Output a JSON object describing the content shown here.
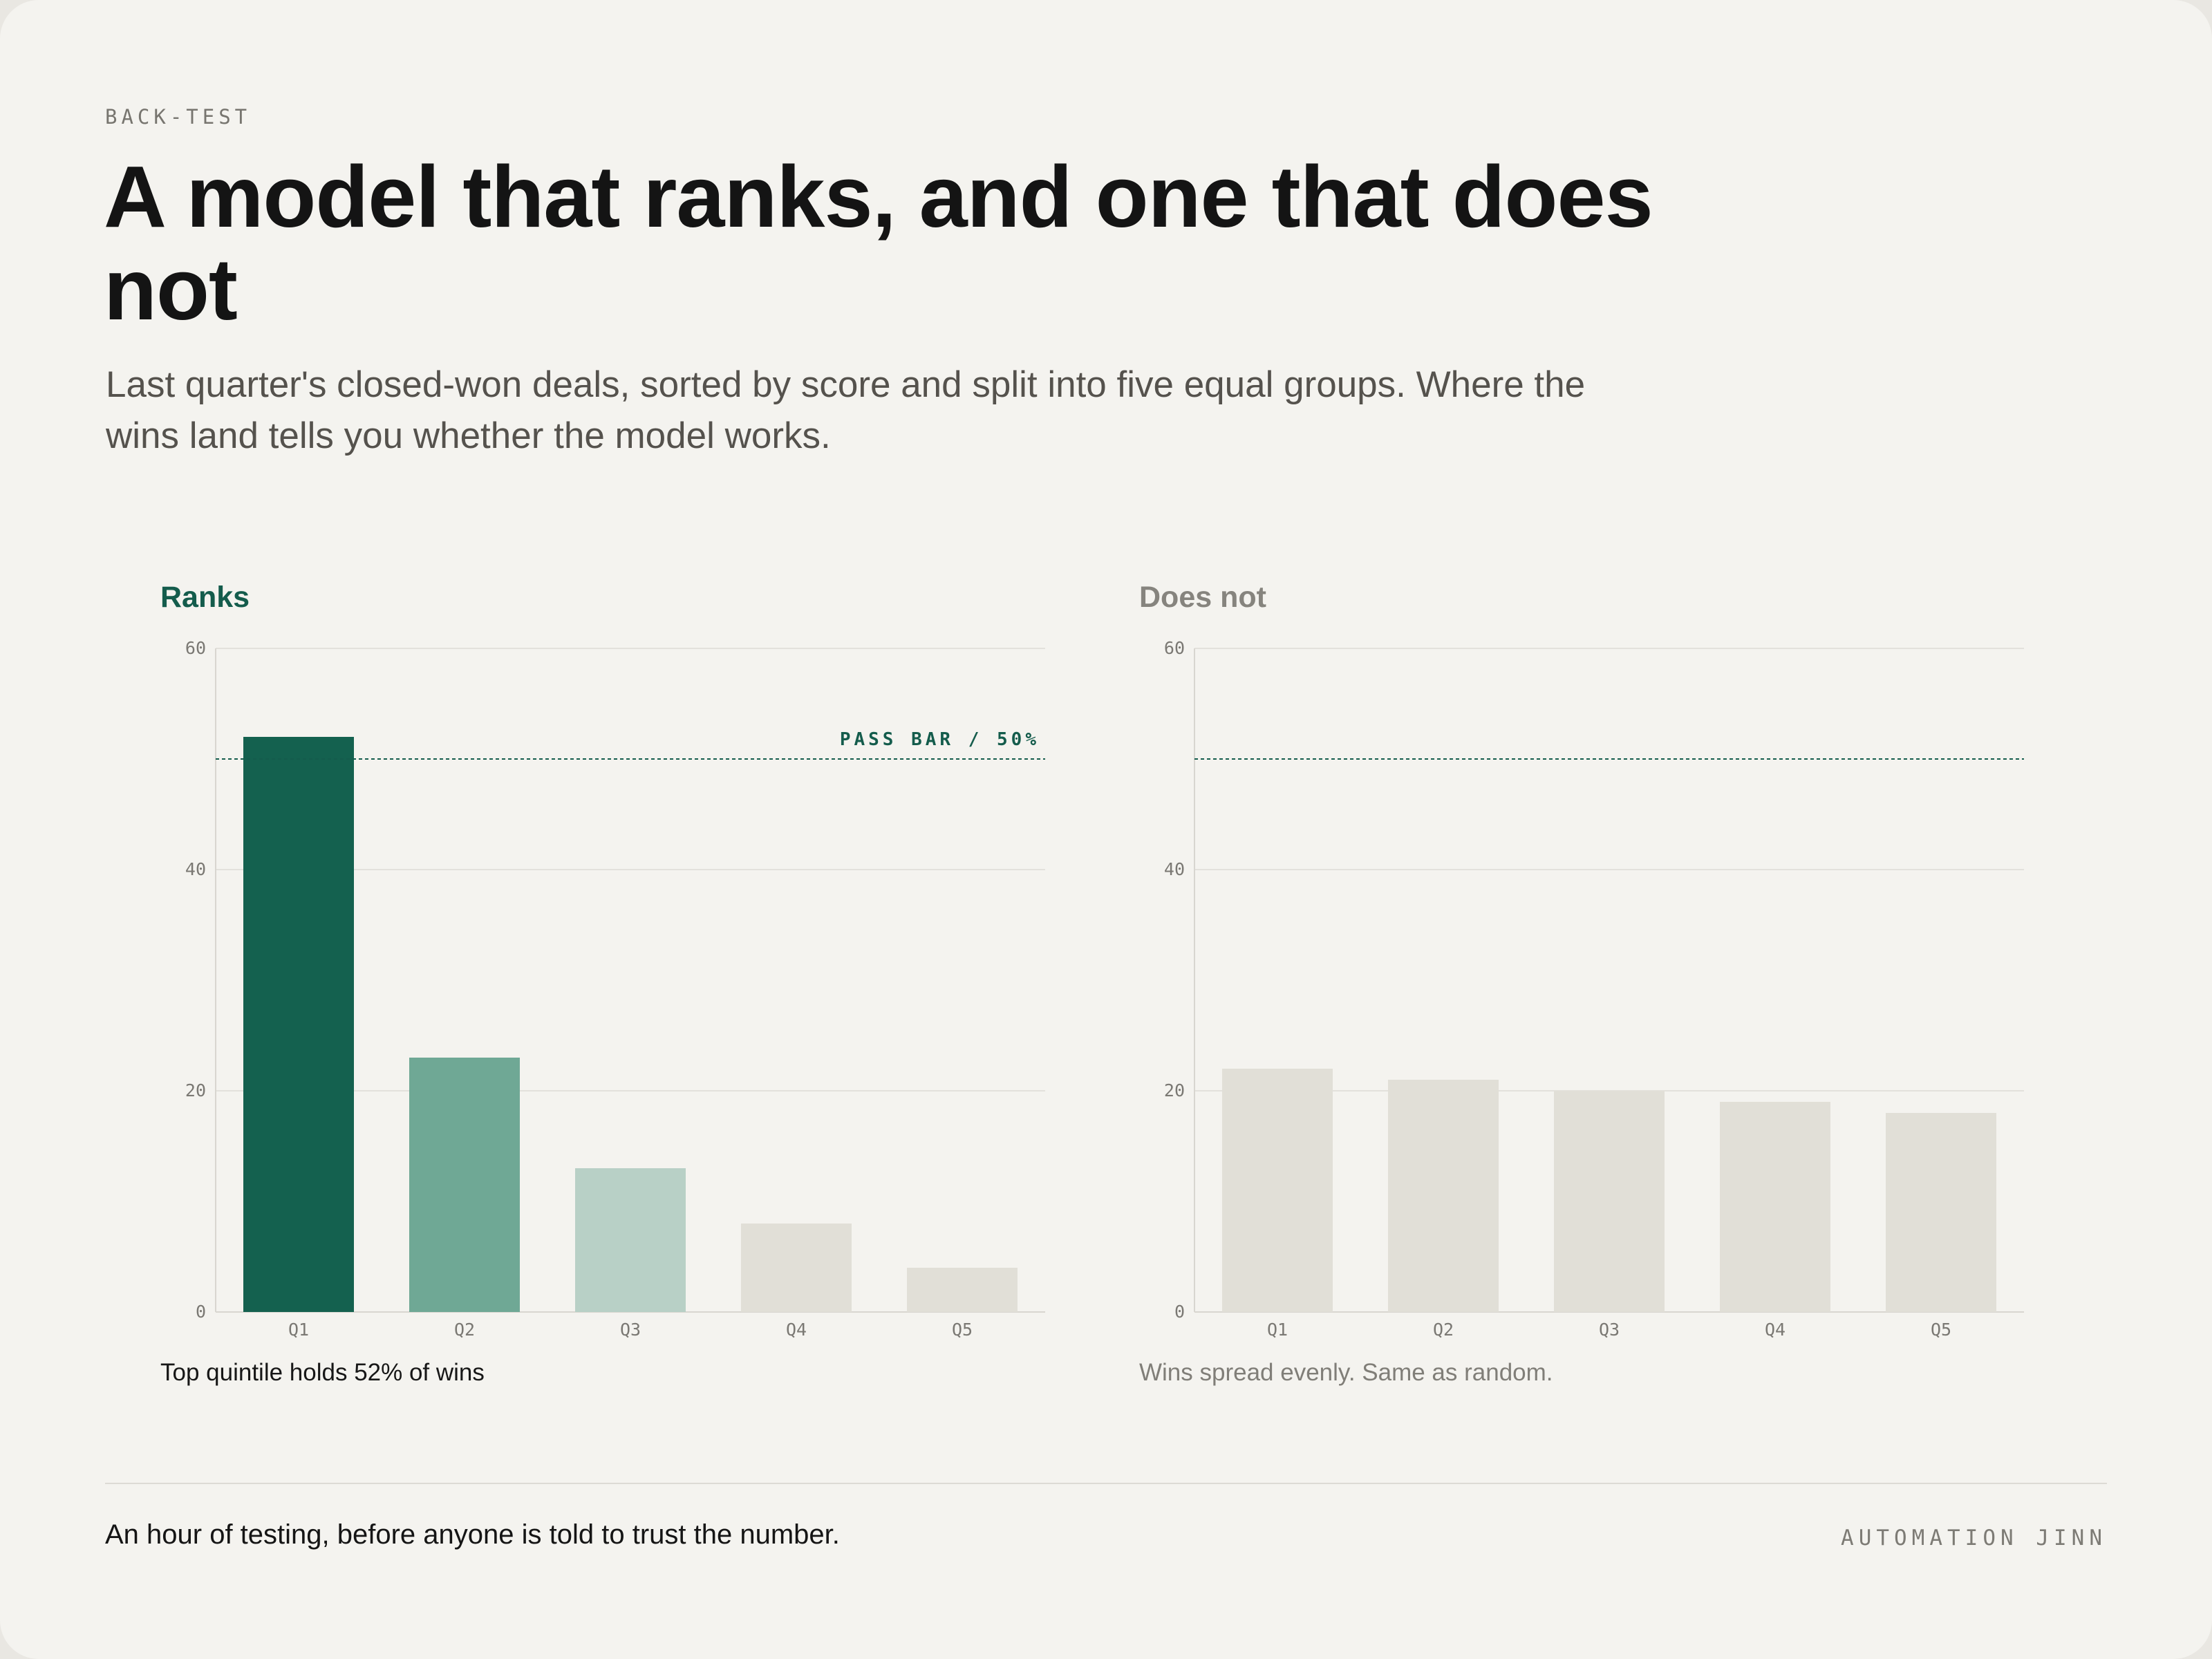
{
  "eyebrow": "BACK-TEST",
  "title": "A model that ranks, and one that does not",
  "subtitle": "Last quarter's closed-won deals, sorted by score and split into five equal groups. Where the wins land tells you whether the model works.",
  "footer": {
    "text": "An hour of testing, before anyone is told to trust the number.",
    "brand": "AUTOMATION JINN"
  },
  "colors": {
    "background": "#f4f3ef",
    "accent": "#145c4c",
    "muted_bar": "#e1dfd7",
    "grid": "#e3e1dc"
  },
  "chart_data": [
    {
      "type": "bar",
      "title": "Ranks",
      "categories": [
        "Q1",
        "Q2",
        "Q3",
        "Q4",
        "Q5"
      ],
      "values": [
        52,
        23,
        13,
        8,
        4
      ],
      "bar_colors": [
        "#14614f",
        "#6fa895",
        "#b8d0c6",
        "#e1dfd7",
        "#e1dfd7"
      ],
      "ylim": [
        0,
        60
      ],
      "yticks": [
        0,
        20,
        40,
        60
      ],
      "reference_line": {
        "value": 50,
        "label": "PASS BAR / 50%"
      },
      "grid": true,
      "caption": "Top quintile holds 52% of wins"
    },
    {
      "type": "bar",
      "title": "Does not",
      "categories": [
        "Q1",
        "Q2",
        "Q3",
        "Q4",
        "Q5"
      ],
      "values": [
        22,
        21,
        20,
        19,
        18
      ],
      "bar_colors": [
        "#e1dfd7",
        "#e1dfd7",
        "#e1dfd7",
        "#e1dfd7",
        "#e1dfd7"
      ],
      "ylim": [
        0,
        60
      ],
      "yticks": [
        0,
        20,
        40,
        60
      ],
      "reference_line": {
        "value": 50,
        "label": ""
      },
      "grid": true,
      "caption": "Wins spread evenly. Same as random."
    }
  ]
}
